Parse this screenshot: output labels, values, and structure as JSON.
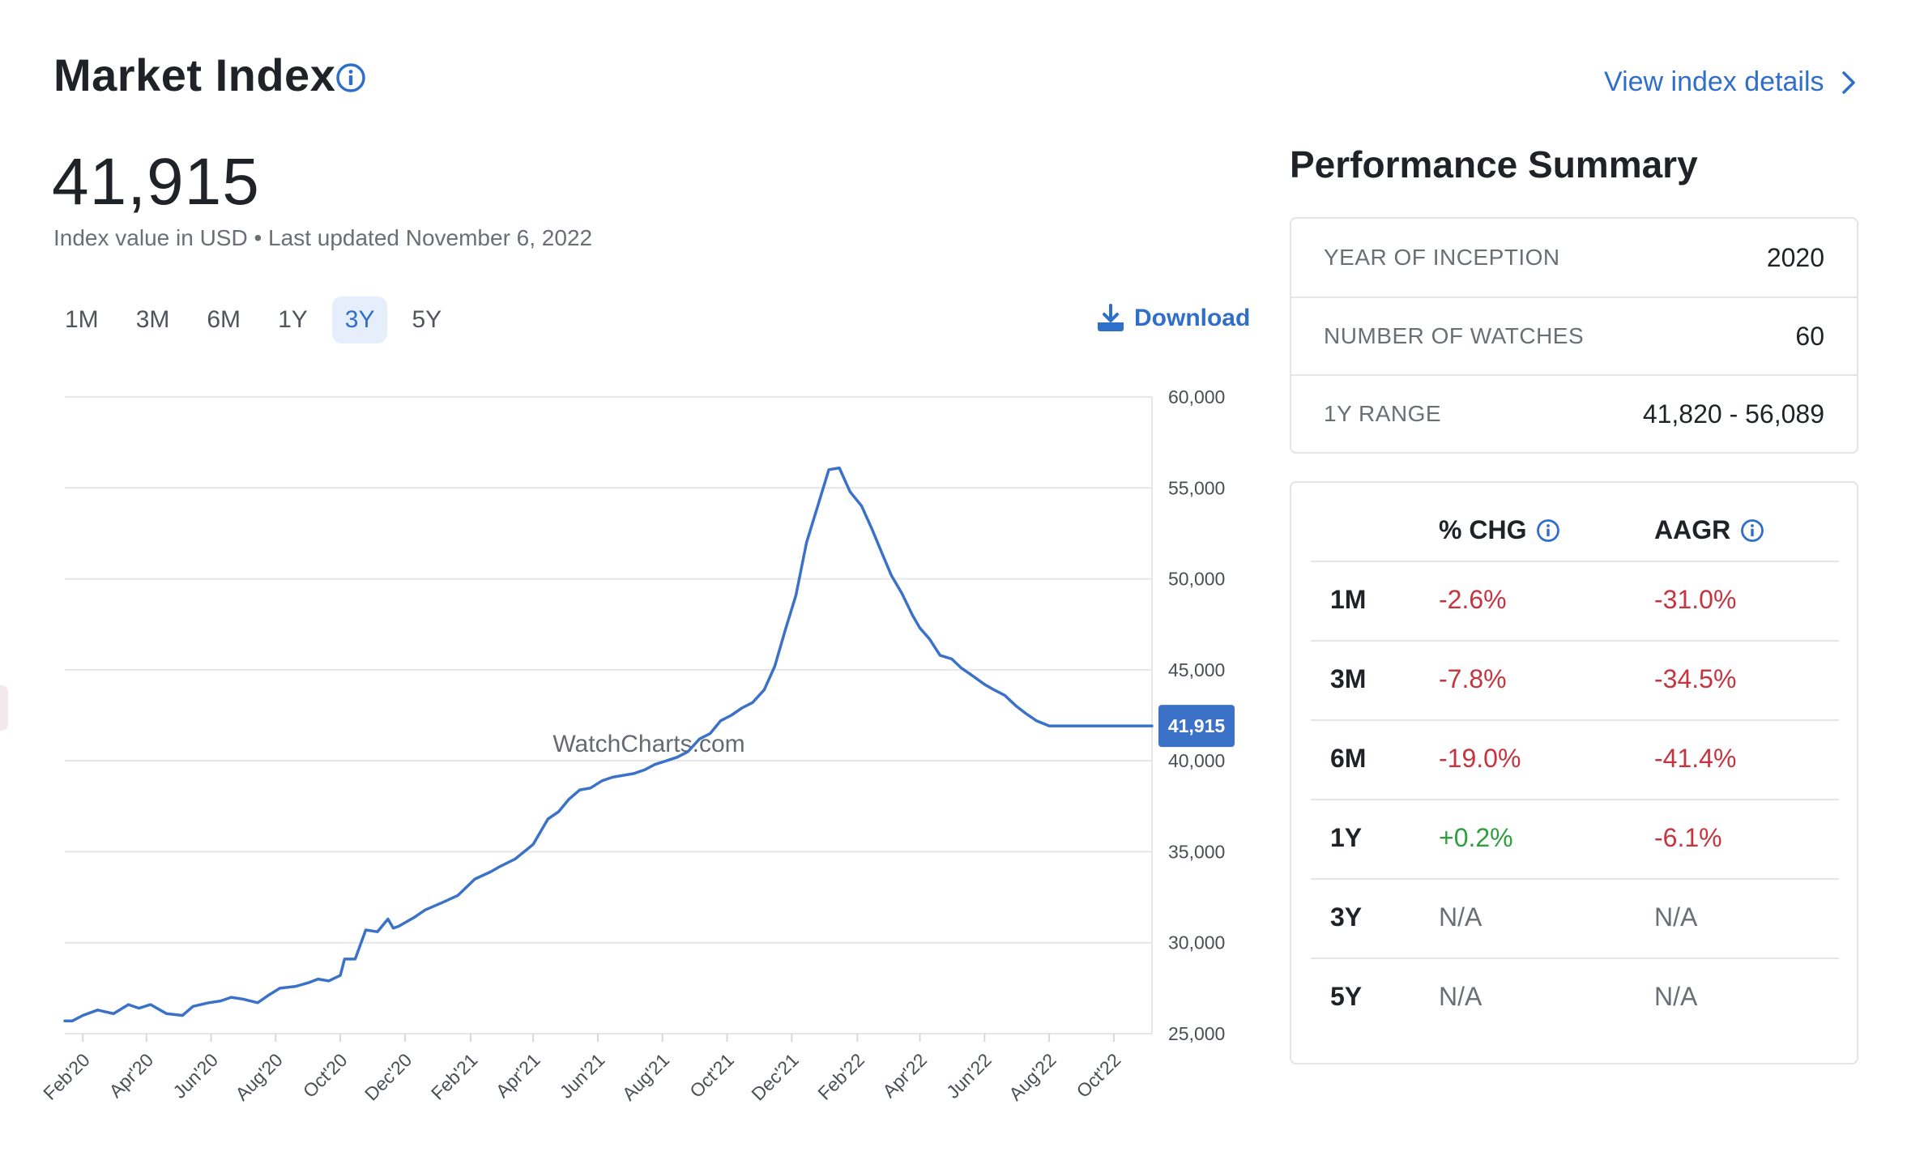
{
  "header": {
    "title": "Market Index",
    "view_details": "View index details"
  },
  "index": {
    "value": "41,915",
    "subtitle": "Index value in USD • Last updated November 6, 2022"
  },
  "range_tabs": [
    {
      "label": "1M",
      "active": false
    },
    {
      "label": "3M",
      "active": false
    },
    {
      "label": "6M",
      "active": false
    },
    {
      "label": "1Y",
      "active": false
    },
    {
      "label": "3Y",
      "active": true
    },
    {
      "label": "5Y",
      "active": false
    }
  ],
  "download_label": "Download",
  "chart_data": {
    "type": "line",
    "watermark": "WatchCharts.com",
    "current_value_label": "41,915",
    "line_color": "#3b72c8",
    "yaxis_position": "right",
    "ylim": [
      25000,
      60000
    ],
    "yticks": [
      60000,
      55000,
      50000,
      45000,
      40000,
      35000,
      30000,
      25000
    ],
    "ytick_labels": [
      "60,000",
      "55,000",
      "50,000",
      "45,000",
      "40,000",
      "35,000",
      "30,000",
      "25,000"
    ],
    "grid": true,
    "xlim": [
      "2020-01-15",
      "2022-11-06"
    ],
    "xticks": [
      "2020-02-01",
      "2020-04-01",
      "2020-06-01",
      "2020-08-01",
      "2020-10-01",
      "2020-12-01",
      "2021-02-01",
      "2021-04-01",
      "2021-06-01",
      "2021-08-01",
      "2021-10-01",
      "2021-12-01",
      "2022-02-01",
      "2022-04-01",
      "2022-06-01",
      "2022-08-01",
      "2022-10-01"
    ],
    "xtick_labels": [
      "Feb'20",
      "Apr'20",
      "Jun'20",
      "Aug'20",
      "Oct'20",
      "Dec'20",
      "Feb'21",
      "Apr'21",
      "Jun'21",
      "Aug'21",
      "Oct'21",
      "Dec'21",
      "Feb'22",
      "Apr'22",
      "Jun'22",
      "Aug'22",
      "Oct'22"
    ],
    "series": [
      {
        "x": [
          "2020-01-15",
          "2020-01-22",
          "2020-02-01",
          "2020-02-15",
          "2020-03-01",
          "2020-03-15",
          "2020-03-25",
          "2020-04-05",
          "2020-04-20",
          "2020-05-05",
          "2020-05-15",
          "2020-05-30",
          "2020-06-10",
          "2020-06-20",
          "2020-07-01",
          "2020-07-15",
          "2020-07-25",
          "2020-08-05",
          "2020-08-20",
          "2020-09-01",
          "2020-09-10",
          "2020-09-20",
          "2020-10-01",
          "2020-10-05",
          "2020-10-15",
          "2020-10-25",
          "2020-11-05",
          "2020-11-15",
          "2020-11-20",
          "2020-11-25",
          "2020-12-10",
          "2020-12-20",
          "2021-01-05",
          "2021-01-20",
          "2021-02-05",
          "2021-02-20",
          "2021-03-01",
          "2021-03-15",
          "2021-04-01",
          "2021-04-15",
          "2021-04-25",
          "2021-05-05",
          "2021-05-15",
          "2021-05-25",
          "2021-06-05",
          "2021-06-15",
          "2021-06-25",
          "2021-07-05",
          "2021-07-15",
          "2021-07-25",
          "2021-08-05",
          "2021-08-15",
          "2021-08-25",
          "2021-09-05",
          "2021-09-15",
          "2021-09-25",
          "2021-10-05",
          "2021-10-15",
          "2021-10-25",
          "2021-11-05",
          "2021-11-15",
          "2021-11-25",
          "2021-12-05",
          "2021-12-15",
          "2021-12-25",
          "2022-01-05",
          "2022-01-15",
          "2022-01-25",
          "2022-02-05",
          "2022-02-15",
          "2022-02-25",
          "2022-03-05",
          "2022-03-15",
          "2022-03-25",
          "2022-04-01",
          "2022-04-10",
          "2022-04-20",
          "2022-05-01",
          "2022-05-10",
          "2022-05-20",
          "2022-06-01",
          "2022-06-10",
          "2022-06-20",
          "2022-07-01",
          "2022-07-10",
          "2022-07-20",
          "2022-08-01",
          "2022-08-10",
          "2022-08-20",
          "2022-09-01",
          "2022-09-10",
          "2022-09-20",
          "2022-10-01",
          "2022-10-10",
          "2022-10-20",
          "2022-11-06"
        ],
        "y": [
          25700,
          25700,
          26000,
          26300,
          26100,
          26600,
          26400,
          26600,
          26100,
          26000,
          26500,
          26700,
          26800,
          27000,
          26900,
          26700,
          27100,
          27500,
          27600,
          27800,
          28000,
          27900,
          28200,
          29100,
          29100,
          30700,
          30600,
          31300,
          30800,
          30900,
          31400,
          31800,
          32200,
          32600,
          33500,
          33900,
          34200,
          34600,
          35400,
          36800,
          37200,
          37900,
          38400,
          38500,
          38900,
          39100,
          39200,
          39300,
          39500,
          39800,
          40000,
          40200,
          40500,
          41200,
          41500,
          42200,
          42500,
          42900,
          43200,
          43900,
          45200,
          47200,
          49100,
          52000,
          53900,
          56000,
          56100,
          54800,
          54000,
          52700,
          51300,
          50200,
          49200,
          48000,
          47300,
          46700,
          45800,
          45600,
          45100,
          44700,
          44200,
          43900,
          43600,
          43000,
          42600,
          42200,
          41915,
          41915,
          41915,
          41915,
          41915,
          41915,
          41915,
          41915,
          41915,
          41915
        ]
      }
    ]
  },
  "performance": {
    "title": "Performance Summary",
    "info": [
      {
        "label": "YEAR OF INCEPTION",
        "value": "2020"
      },
      {
        "label": "NUMBER OF WATCHES",
        "value": "60"
      },
      {
        "label": "1Y RANGE",
        "value": "41,820 - 56,089"
      }
    ],
    "headers": {
      "chg": "% CHG",
      "aagr": "AAGR"
    },
    "rows": [
      {
        "period": "1M",
        "chg": "-2.6%",
        "aagr": "-31.0%",
        "chg_type": "neg",
        "aagr_type": "neg"
      },
      {
        "period": "3M",
        "chg": "-7.8%",
        "aagr": "-34.5%",
        "chg_type": "neg",
        "aagr_type": "neg"
      },
      {
        "period": "6M",
        "chg": "-19.0%",
        "aagr": "-41.4%",
        "chg_type": "neg",
        "aagr_type": "neg"
      },
      {
        "period": "1Y",
        "chg": "+0.2%",
        "aagr": "-6.1%",
        "chg_type": "pos",
        "aagr_type": "neg"
      },
      {
        "period": "3Y",
        "chg": "N/A",
        "aagr": "N/A",
        "chg_type": "na",
        "aagr_type": "na"
      },
      {
        "period": "5Y",
        "chg": "N/A",
        "aagr": "N/A",
        "chg_type": "na",
        "aagr_type": "na"
      }
    ]
  }
}
